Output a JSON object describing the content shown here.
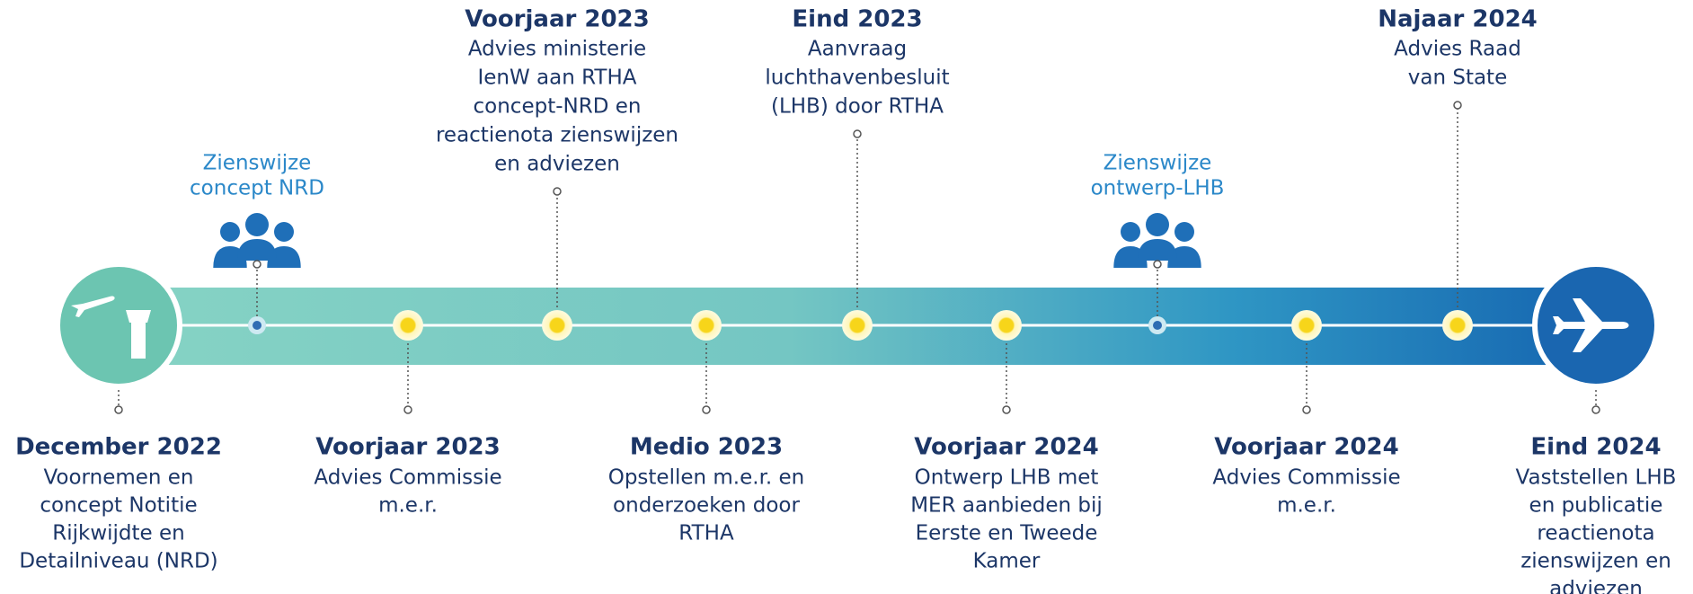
{
  "events": [
    {
      "title": "December 2022",
      "lines": [
        "Voornemen en",
        "concept Notitie",
        "Rijkwijdte en",
        "Detailniveau (NRD)"
      ]
    },
    {
      "lines": [
        "Zienswijze",
        "concept NRD"
      ]
    },
    {
      "title": "Voorjaar 2023",
      "lines": [
        "Advies Commissie",
        "m.e.r."
      ]
    },
    {
      "title": "Voorjaar 2023",
      "lines": [
        "Advies ministerie",
        "IenW aan RTHA",
        "concept-NRD en",
        "reactienota zienswijzen",
        "en adviezen"
      ]
    },
    {
      "title": "Medio 2023",
      "lines": [
        "Opstellen m.e.r. en",
        "onderzoeken door",
        "RTHA"
      ]
    },
    {
      "title": "Eind 2023",
      "lines": [
        "Aanvraag",
        "luchthavenbesluit",
        "(LHB) door RTHA"
      ]
    },
    {
      "title": "Voorjaar 2024",
      "lines": [
        "Ontwerp LHB met",
        "MER aanbieden bij",
        "Eerste en Tweede",
        "Kamer"
      ]
    },
    {
      "lines": [
        "Zienswijze",
        "ontwerp-LHB"
      ]
    },
    {
      "title": "Voorjaar 2024",
      "lines": [
        "Advies Commissie",
        "m.e.r."
      ]
    },
    {
      "title": "Najaar 2024",
      "lines": [
        "Advies Raad",
        "van State"
      ]
    },
    {
      "title": "Eind 2024",
      "lines": [
        "Vaststellen LHB",
        "en publicatie",
        "reactienota",
        "zienswijzen en",
        "adviezen"
      ]
    }
  ]
}
